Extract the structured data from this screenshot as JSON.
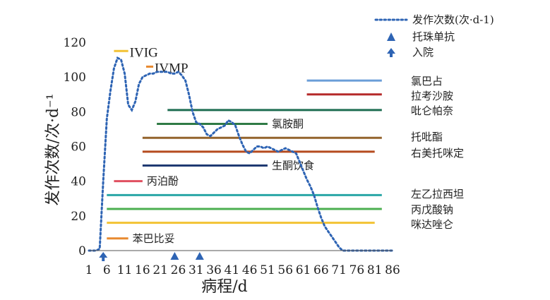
{
  "chart_data": {
    "type": "line",
    "xlabel": "病程/d",
    "ylabel": "发作次数/次·d⁻¹",
    "xlim": [
      1,
      86
    ],
    "ylim": [
      0,
      120
    ],
    "x_ticks": [
      "1",
      "6",
      "11",
      "16",
      "21",
      "26",
      "31",
      "36",
      "41",
      "46",
      "51",
      "56",
      "61",
      "66",
      "71",
      "76",
      "81",
      "86"
    ],
    "y_ticks": [
      "0",
      "20",
      "40",
      "60",
      "80",
      "100",
      "120"
    ],
    "series": [
      {
        "name": "发作次数(次·d-1)",
        "color": "#2e64b4",
        "style": "dotted",
        "points": [
          [
            1,
            0
          ],
          [
            3,
            0
          ],
          [
            4,
            1
          ],
          [
            5,
            40
          ],
          [
            6,
            76
          ],
          [
            7,
            92
          ],
          [
            8,
            105
          ],
          [
            9,
            111
          ],
          [
            10,
            110
          ],
          [
            11,
            102
          ],
          [
            12,
            84
          ],
          [
            13,
            81
          ],
          [
            14,
            86
          ],
          [
            15,
            96
          ],
          [
            16,
            100
          ],
          [
            17,
            101
          ],
          [
            18,
            102
          ],
          [
            19,
            102
          ],
          [
            20,
            103
          ],
          [
            21,
            103
          ],
          [
            22,
            103
          ],
          [
            23,
            103
          ],
          [
            24,
            102
          ],
          [
            25,
            102
          ],
          [
            26,
            103
          ],
          [
            27,
            101
          ],
          [
            28,
            98
          ],
          [
            29,
            90
          ],
          [
            30,
            80
          ],
          [
            31,
            74
          ],
          [
            32,
            73
          ],
          [
            33,
            71
          ],
          [
            34,
            67
          ],
          [
            35,
            66
          ],
          [
            36,
            68
          ],
          [
            37,
            70
          ],
          [
            38,
            71
          ],
          [
            39,
            72
          ],
          [
            40,
            75
          ],
          [
            41,
            74
          ],
          [
            42,
            72
          ],
          [
            43,
            66
          ],
          [
            44,
            61
          ],
          [
            45,
            57
          ],
          [
            46,
            56
          ],
          [
            47,
            58
          ],
          [
            48,
            60
          ],
          [
            49,
            60
          ],
          [
            50,
            59
          ],
          [
            51,
            60
          ],
          [
            52,
            59
          ],
          [
            53,
            58
          ],
          [
            54,
            57
          ],
          [
            55,
            58
          ],
          [
            56,
            59
          ],
          [
            57,
            58
          ],
          [
            58,
            57
          ],
          [
            59,
            56
          ],
          [
            60,
            51
          ],
          [
            61,
            46
          ],
          [
            62,
            41
          ],
          [
            63,
            37
          ],
          [
            64,
            32
          ],
          [
            65,
            25
          ],
          [
            66,
            19
          ],
          [
            67,
            14
          ],
          [
            68,
            11
          ],
          [
            69,
            8
          ],
          [
            70,
            5
          ],
          [
            71,
            2
          ],
          [
            72,
            0
          ],
          [
            76,
            0
          ],
          [
            86,
            0
          ]
        ]
      }
    ],
    "drug_bars": [
      {
        "name": "IVIG",
        "start": 8,
        "end": 12,
        "y": 115,
        "color": "#f2c233"
      },
      {
        "name": "IVMP",
        "start": 17,
        "end": 19,
        "y": 106,
        "color": "#e88a30"
      },
      {
        "name": "氯巴占",
        "start": 62,
        "end": 83,
        "y": 98,
        "color": "#6a9ed8"
      },
      {
        "name": "拉考沙胺",
        "start": 62,
        "end": 83,
        "y": 90,
        "color": "#b52a2a"
      },
      {
        "name": "吡仑帕奈",
        "start": 23,
        "end": 83,
        "y": 81,
        "color": "#1e6e52"
      },
      {
        "name": "氯胺酮",
        "start": 20,
        "end": 51,
        "y": 73,
        "color": "#2f7a45"
      },
      {
        "name": "托吡酯",
        "start": 16,
        "end": 83,
        "y": 65,
        "color": "#94632c"
      },
      {
        "name": "右美托咪定",
        "start": 16,
        "end": 81,
        "y": 57,
        "color": "#b54a1e"
      },
      {
        "name": "生酮饮食",
        "start": 16,
        "end": 51,
        "y": 49,
        "color": "#1f3a72"
      },
      {
        "name": "丙泊酚",
        "start": 8,
        "end": 16,
        "y": 40,
        "color": "#e05060"
      },
      {
        "name": "左乙拉西坦",
        "start": 6,
        "end": 83,
        "y": 32,
        "color": "#2aa6a6"
      },
      {
        "name": "丙戊酸钠",
        "start": 6,
        "end": 83,
        "y": 24,
        "color": "#4caf50"
      },
      {
        "name": "咪达唑仑",
        "start": 6,
        "end": 81,
        "y": 16,
        "color": "#f2c233"
      },
      {
        "name": "苯巴比妥",
        "start": 6,
        "end": 12,
        "y": 7,
        "color": "#e88a30"
      }
    ],
    "markers": [
      {
        "type": "托珠单抗",
        "x": 25
      },
      {
        "type": "托珠单抗",
        "x": 32
      },
      {
        "type": "入院",
        "x": 5
      }
    ],
    "legend": {
      "placement": "top-right",
      "entries": [
        {
          "label": "发作次数(次·d-1)",
          "symbol": "dotted-line",
          "color": "#2e64b4"
        },
        {
          "label": "托珠单抗",
          "symbol": "triangle",
          "color": "#2e64b4"
        },
        {
          "label": "入院",
          "symbol": "arrow-up",
          "color": "#2e64b4"
        }
      ]
    },
    "grid": false
  }
}
